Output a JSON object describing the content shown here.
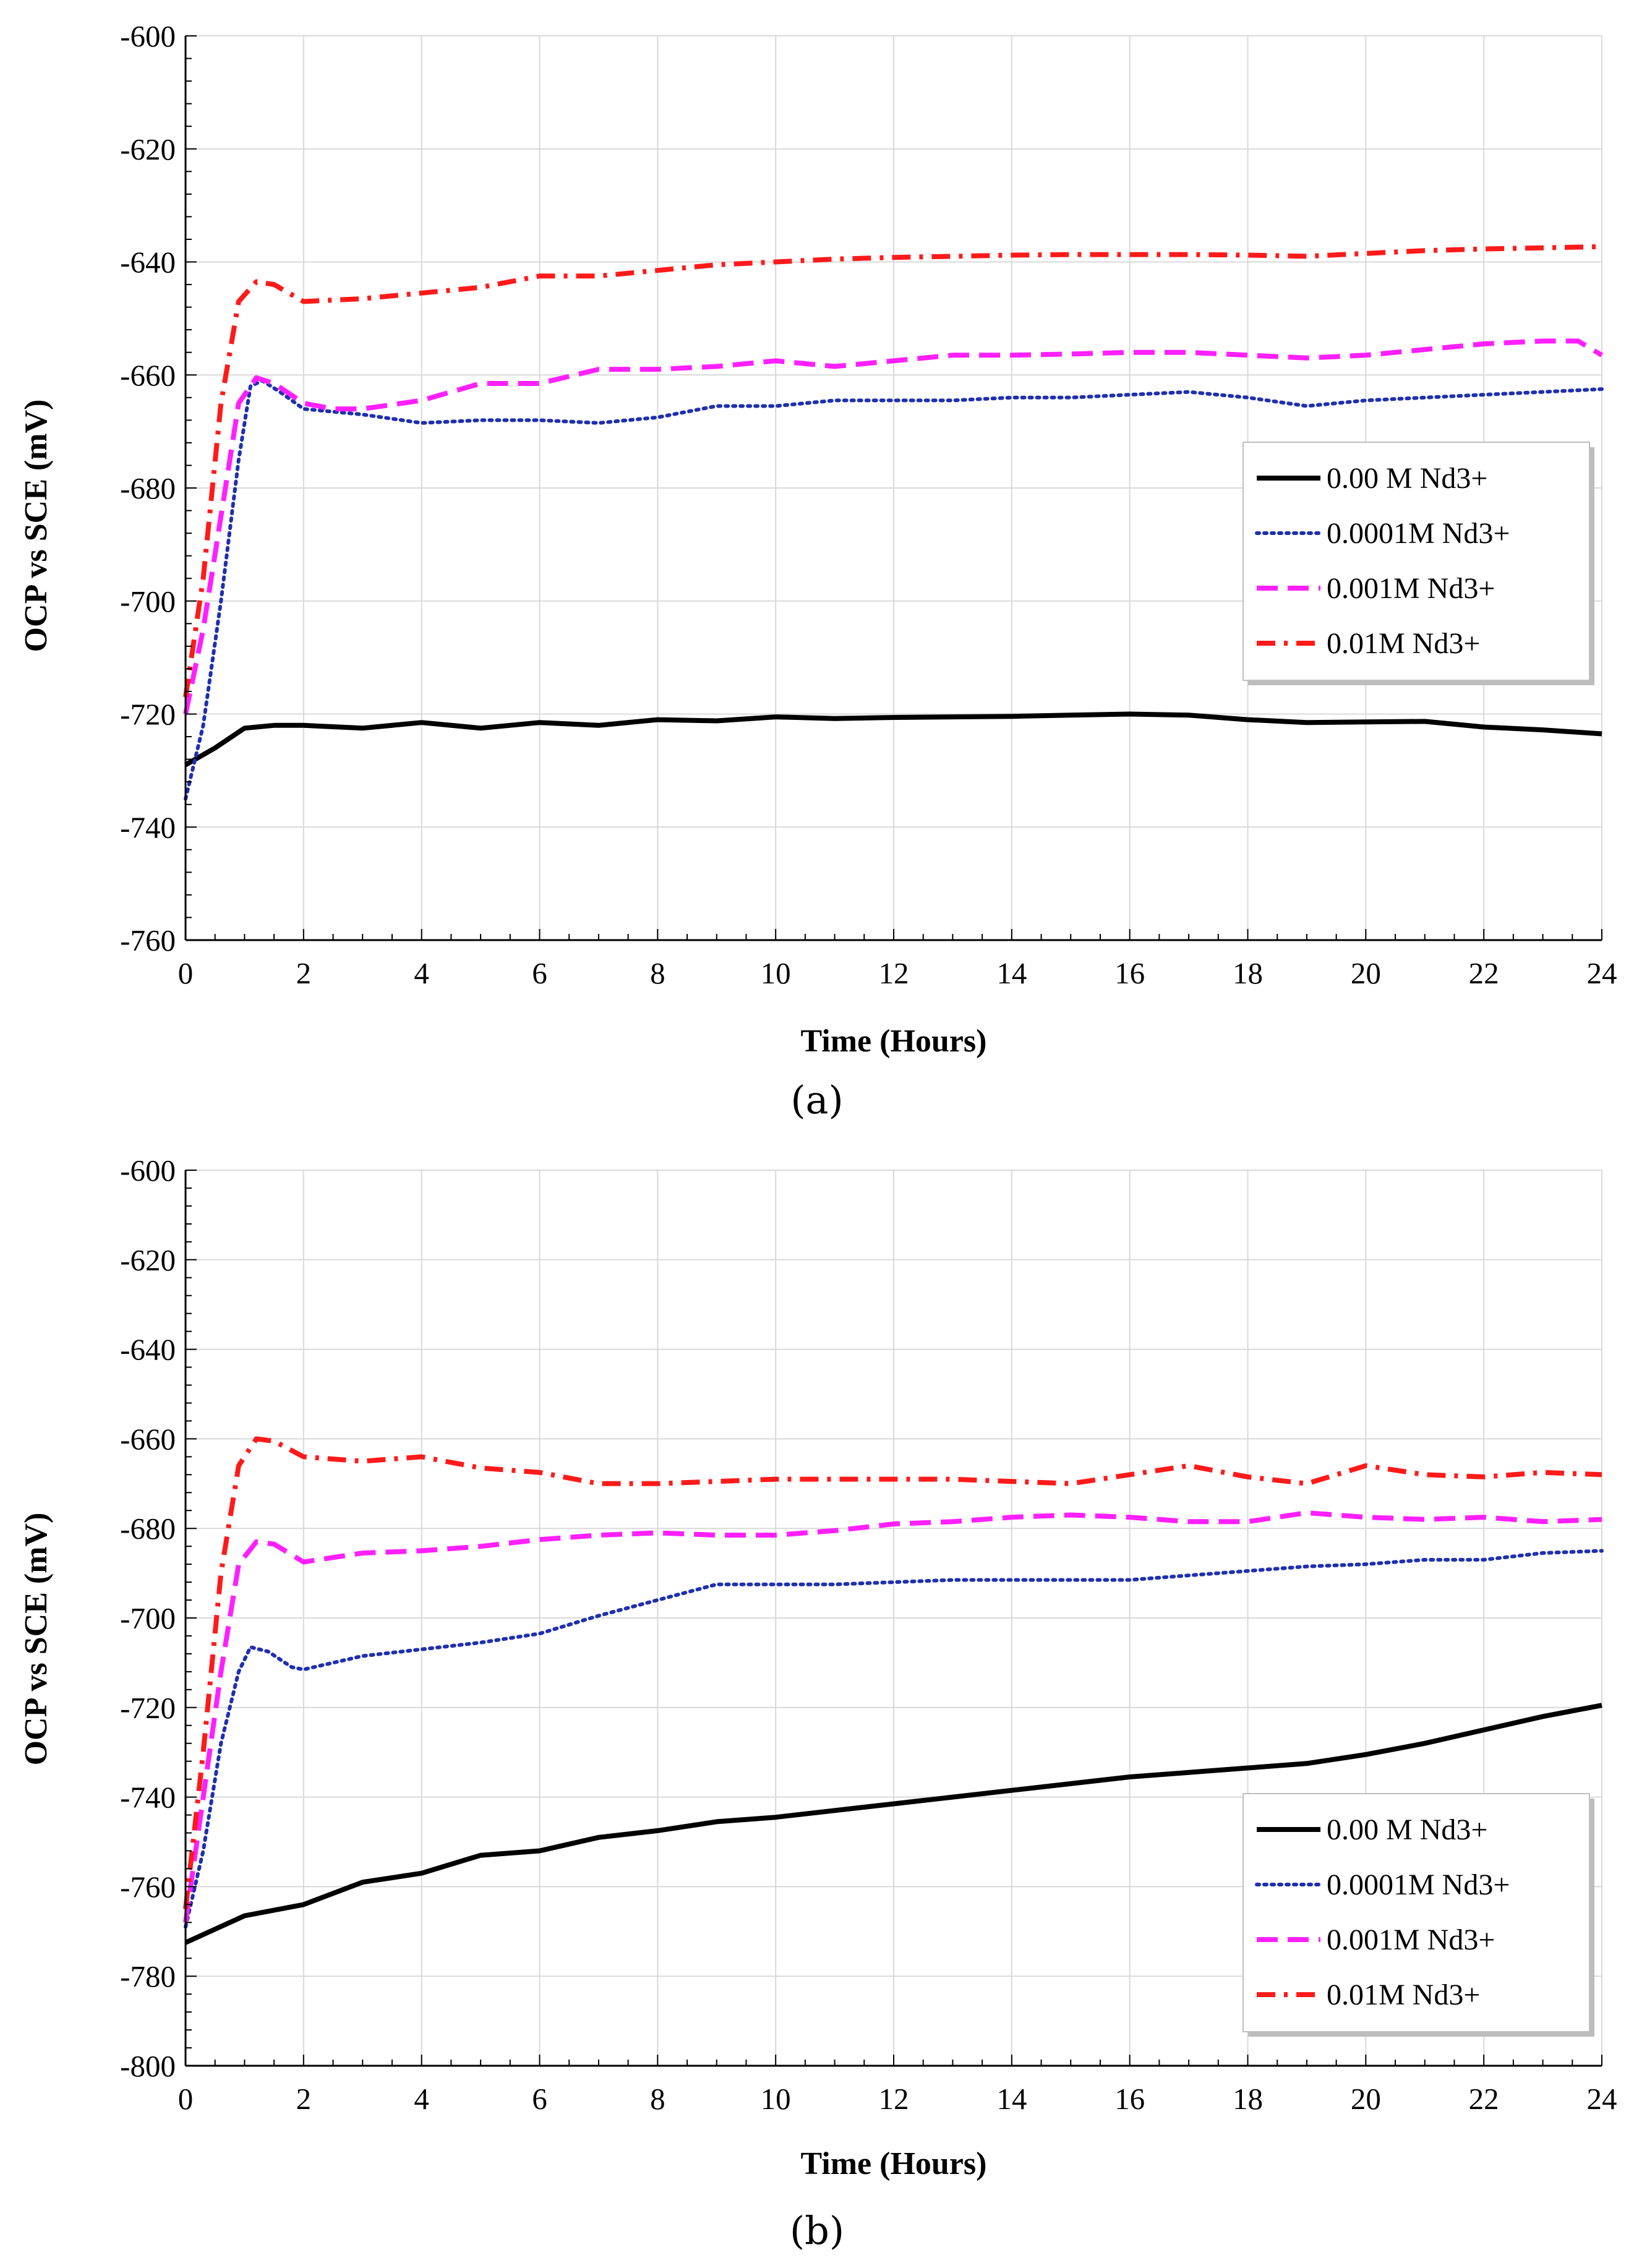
{
  "chart_data": [
    {
      "type": "line",
      "panel_label": "(a)",
      "xlabel": "Time (Hours)",
      "ylabel": "OCP vs SCE (mV)",
      "xlim": [
        0,
        24
      ],
      "ylim": [
        -760,
        -600
      ],
      "x_ticks": [
        0,
        2,
        4,
        6,
        8,
        10,
        12,
        14,
        16,
        18,
        20,
        22,
        24
      ],
      "y_ticks": [
        -600,
        -620,
        -640,
        -660,
        -680,
        -700,
        -720,
        -740,
        -760
      ],
      "grid": true,
      "legend_position": "right-middle",
      "series": [
        {
          "name": "0.00 M Nd3+",
          "color": "#000000",
          "style": "solid",
          "points": [
            [
              0,
              -729
            ],
            [
              0.5,
              -726
            ],
            [
              1,
              -722.5
            ],
            [
              1.5,
              -722
            ],
            [
              2,
              -722
            ],
            [
              3,
              -722.5
            ],
            [
              4,
              -721.5
            ],
            [
              5,
              -722.5
            ],
            [
              6,
              -721.5
            ],
            [
              7,
              -722
            ],
            [
              8,
              -721
            ],
            [
              9,
              -721.2
            ],
            [
              10,
              -720.5
            ],
            [
              11,
              -720.8
            ],
            [
              12,
              -720.6
            ],
            [
              13,
              -720.5
            ],
            [
              14,
              -720.4
            ],
            [
              15,
              -720.2
            ],
            [
              16,
              -720
            ],
            [
              17,
              -720.2
            ],
            [
              18,
              -721
            ],
            [
              19,
              -721.5
            ],
            [
              20,
              -721.4
            ],
            [
              21,
              -721.3
            ],
            [
              22,
              -722.3
            ],
            [
              23,
              -722.8
            ],
            [
              24,
              -723.5
            ]
          ]
        },
        {
          "name": "0.0001M Nd3+",
          "color": "#1f2fb0",
          "style": "dotted",
          "points": [
            [
              0,
              -735
            ],
            [
              0.3,
              -722
            ],
            [
              0.6,
              -700
            ],
            [
              0.9,
              -675
            ],
            [
              1.1,
              -662
            ],
            [
              1.3,
              -661
            ],
            [
              1.6,
              -663
            ],
            [
              2,
              -666
            ],
            [
              3,
              -667
            ],
            [
              4,
              -668.5
            ],
            [
              5,
              -668
            ],
            [
              6,
              -668
            ],
            [
              7,
              -668.5
            ],
            [
              8,
              -667.5
            ],
            [
              9,
              -665.5
            ],
            [
              10,
              -665.5
            ],
            [
              11,
              -664.5
            ],
            [
              12,
              -664.5
            ],
            [
              13,
              -664.5
            ],
            [
              14,
              -664
            ],
            [
              15,
              -664
            ],
            [
              16,
              -663.5
            ],
            [
              17,
              -663
            ],
            [
              18,
              -664
            ],
            [
              19,
              -665.5
            ],
            [
              20,
              -664.5
            ],
            [
              21,
              -664
            ],
            [
              22,
              -663.5
            ],
            [
              23,
              -663
            ],
            [
              24,
              -662.5
            ]
          ]
        },
        {
          "name": "0.001M Nd3+",
          "color": "#ff1fff",
          "style": "dashed",
          "points": [
            [
              0,
              -720
            ],
            [
              0.3,
              -705
            ],
            [
              0.6,
              -685
            ],
            [
              0.9,
              -665
            ],
            [
              1.2,
              -660.5
            ],
            [
              1.5,
              -661.5
            ],
            [
              2,
              -665
            ],
            [
              2.5,
              -666
            ],
            [
              3,
              -666
            ],
            [
              4,
              -664.5
            ],
            [
              5,
              -661.5
            ],
            [
              6,
              -661.5
            ],
            [
              7,
              -659
            ],
            [
              8,
              -659
            ],
            [
              9,
              -658.5
            ],
            [
              10,
              -657.5
            ],
            [
              11,
              -658.5
            ],
            [
              12,
              -657.5
            ],
            [
              13,
              -656.5
            ],
            [
              14,
              -656.5
            ],
            [
              15,
              -656.3
            ],
            [
              16,
              -656
            ],
            [
              17,
              -656
            ],
            [
              18,
              -656.5
            ],
            [
              19,
              -657
            ],
            [
              20,
              -656.5
            ],
            [
              21,
              -655.5
            ],
            [
              22,
              -654.5
            ],
            [
              23,
              -654
            ],
            [
              23.6,
              -654
            ],
            [
              24,
              -656.5
            ]
          ]
        },
        {
          "name": "0.01M Nd3+",
          "color": "#ff1a1a",
          "style": "dashdot",
          "points": [
            [
              0,
              -717
            ],
            [
              0.3,
              -696
            ],
            [
              0.6,
              -665
            ],
            [
              0.9,
              -647
            ],
            [
              1.2,
              -643.5
            ],
            [
              1.5,
              -644
            ],
            [
              2,
              -647
            ],
            [
              3,
              -646.5
            ],
            [
              4,
              -645.5
            ],
            [
              5,
              -644.5
            ],
            [
              6,
              -642.5
            ],
            [
              7,
              -642.5
            ],
            [
              8,
              -641.5
            ],
            [
              9,
              -640.5
            ],
            [
              10,
              -640
            ],
            [
              11,
              -639.5
            ],
            [
              12,
              -639.2
            ],
            [
              13,
              -639
            ],
            [
              14,
              -638.8
            ],
            [
              15,
              -638.7
            ],
            [
              16,
              -638.7
            ],
            [
              17,
              -638.7
            ],
            [
              18,
              -638.8
            ],
            [
              19,
              -639
            ],
            [
              20,
              -638.5
            ],
            [
              21,
              -638
            ],
            [
              22,
              -637.7
            ],
            [
              23,
              -637.5
            ],
            [
              24,
              -637.3
            ]
          ]
        }
      ]
    },
    {
      "type": "line",
      "panel_label": "(b)",
      "xlabel": "Time (Hours)",
      "ylabel": "OCP vs SCE (mV)",
      "xlim": [
        0,
        24
      ],
      "ylim": [
        -800,
        -600
      ],
      "x_ticks": [
        0,
        2,
        4,
        6,
        8,
        10,
        12,
        14,
        16,
        18,
        20,
        22,
        24
      ],
      "y_ticks": [
        -600,
        -620,
        -640,
        -660,
        -680,
        -700,
        -720,
        -740,
        -760,
        -780,
        -800
      ],
      "grid": true,
      "legend_position": "bottom-right",
      "series": [
        {
          "name": "0.00 M Nd3+",
          "color": "#000000",
          "style": "solid",
          "points": [
            [
              0,
              -772.5
            ],
            [
              1,
              -766.5
            ],
            [
              2,
              -764
            ],
            [
              3,
              -759
            ],
            [
              4,
              -757
            ],
            [
              5,
              -753
            ],
            [
              6,
              -752
            ],
            [
              7,
              -749
            ],
            [
              8,
              -747.5
            ],
            [
              9,
              -745.5
            ],
            [
              10,
              -744.5
            ],
            [
              11,
              -743
            ],
            [
              12,
              -741.5
            ],
            [
              13,
              -740
            ],
            [
              14,
              -738.5
            ],
            [
              15,
              -737
            ],
            [
              16,
              -735.5
            ],
            [
              17,
              -734.5
            ],
            [
              18,
              -733.5
            ],
            [
              19,
              -732.5
            ],
            [
              20,
              -730.5
            ],
            [
              21,
              -728
            ],
            [
              22,
              -725
            ],
            [
              23,
              -722
            ],
            [
              24,
              -719.5
            ]
          ]
        },
        {
          "name": "0.0001M Nd3+",
          "color": "#1f2fb0",
          "style": "dotted",
          "points": [
            [
              0,
              -769
            ],
            [
              0.3,
              -752
            ],
            [
              0.6,
              -728
            ],
            [
              0.9,
              -712
            ],
            [
              1.1,
              -706.5
            ],
            [
              1.4,
              -707.5
            ],
            [
              1.8,
              -711
            ],
            [
              2,
              -711.5
            ],
            [
              3,
              -708.5
            ],
            [
              4,
              -707
            ],
            [
              5,
              -705.5
            ],
            [
              6,
              -703.5
            ],
            [
              7,
              -699.5
            ],
            [
              8,
              -696
            ],
            [
              9,
              -692.5
            ],
            [
              10,
              -692.5
            ],
            [
              11,
              -692.5
            ],
            [
              12,
              -692
            ],
            [
              13,
              -691.5
            ],
            [
              14,
              -691.5
            ],
            [
              15,
              -691.5
            ],
            [
              16,
              -691.5
            ],
            [
              17,
              -690.5
            ],
            [
              18,
              -689.5
            ],
            [
              19,
              -688.5
            ],
            [
              20,
              -688
            ],
            [
              21,
              -687
            ],
            [
              22,
              -687
            ],
            [
              23,
              -685.5
            ],
            [
              24,
              -685
            ]
          ]
        },
        {
          "name": "0.001M Nd3+",
          "color": "#ff1fff",
          "style": "dashed",
          "points": [
            [
              0,
              -768
            ],
            [
              0.3,
              -740
            ],
            [
              0.6,
              -712
            ],
            [
              0.9,
              -688
            ],
            [
              1.2,
              -683
            ],
            [
              1.5,
              -683.5
            ],
            [
              2,
              -687.5
            ],
            [
              3,
              -685.5
            ],
            [
              4,
              -685
            ],
            [
              5,
              -684
            ],
            [
              6,
              -682.5
            ],
            [
              7,
              -681.5
            ],
            [
              8,
              -681
            ],
            [
              9,
              -681.5
            ],
            [
              10,
              -681.5
            ],
            [
              11,
              -680.5
            ],
            [
              12,
              -679
            ],
            [
              13,
              -678.5
            ],
            [
              14,
              -677.5
            ],
            [
              15,
              -677
            ],
            [
              16,
              -677.5
            ],
            [
              17,
              -678.5
            ],
            [
              18,
              -678.5
            ],
            [
              19,
              -676.5
            ],
            [
              20,
              -677.5
            ],
            [
              21,
              -678
            ],
            [
              22,
              -677.5
            ],
            [
              23,
              -678.5
            ],
            [
              24,
              -678
            ]
          ]
        },
        {
          "name": "0.01M Nd3+",
          "color": "#ff1a1a",
          "style": "dashdot",
          "points": [
            [
              0,
              -765
            ],
            [
              0.3,
              -730
            ],
            [
              0.6,
              -690
            ],
            [
              0.9,
              -666
            ],
            [
              1.2,
              -660
            ],
            [
              1.5,
              -660.5
            ],
            [
              2,
              -664
            ],
            [
              3,
              -665
            ],
            [
              4,
              -664
            ],
            [
              5,
              -666.5
            ],
            [
              6,
              -667.5
            ],
            [
              7,
              -670
            ],
            [
              8,
              -670
            ],
            [
              9,
              -669.5
            ],
            [
              10,
              -669
            ],
            [
              11,
              -669
            ],
            [
              12,
              -669
            ],
            [
              13,
              -669
            ],
            [
              14,
              -669.5
            ],
            [
              15,
              -670
            ],
            [
              16,
              -668
            ],
            [
              17,
              -666
            ],
            [
              18,
              -668.5
            ],
            [
              19,
              -670
            ],
            [
              20,
              -666
            ],
            [
              21,
              -668
            ],
            [
              22,
              -668.5
            ],
            [
              23,
              -667.5
            ],
            [
              24,
              -668
            ]
          ]
        }
      ]
    }
  ]
}
